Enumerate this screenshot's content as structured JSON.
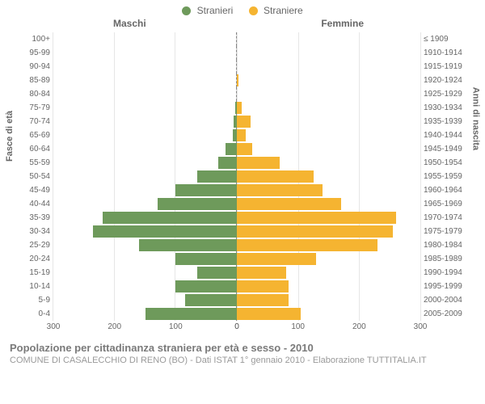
{
  "legend": {
    "male": {
      "label": "Stranieri",
      "color": "#6e9a5b"
    },
    "female": {
      "label": "Straniere",
      "color": "#f5b431"
    }
  },
  "section_labels": {
    "left": "Maschi",
    "right": "Femmine"
  },
  "axis_titles": {
    "left": "Fasce di età",
    "right": "Anni di nascita"
  },
  "x_axis": {
    "max": 300,
    "ticks": [
      0,
      100,
      200,
      300
    ]
  },
  "grid_color": "#e6e6e6",
  "bar_colors": {
    "male": "#6e9a5b",
    "female": "#f5b431"
  },
  "age_groups": [
    {
      "age": "100+",
      "birth": "≤ 1909",
      "m": 0,
      "f": 0
    },
    {
      "age": "95-99",
      "birth": "1910-1914",
      "m": 0,
      "f": 0
    },
    {
      "age": "90-94",
      "birth": "1915-1919",
      "m": 0,
      "f": 0
    },
    {
      "age": "85-89",
      "birth": "1920-1924",
      "m": 0,
      "f": 3
    },
    {
      "age": "80-84",
      "birth": "1925-1929",
      "m": 0,
      "f": 0
    },
    {
      "age": "75-79",
      "birth": "1930-1934",
      "m": 3,
      "f": 8
    },
    {
      "age": "70-74",
      "birth": "1935-1939",
      "m": 5,
      "f": 22
    },
    {
      "age": "65-69",
      "birth": "1940-1944",
      "m": 7,
      "f": 15
    },
    {
      "age": "60-64",
      "birth": "1945-1949",
      "m": 18,
      "f": 25
    },
    {
      "age": "55-59",
      "birth": "1950-1954",
      "m": 30,
      "f": 70
    },
    {
      "age": "50-54",
      "birth": "1955-1959",
      "m": 65,
      "f": 125
    },
    {
      "age": "45-49",
      "birth": "1960-1964",
      "m": 100,
      "f": 140
    },
    {
      "age": "40-44",
      "birth": "1965-1969",
      "m": 130,
      "f": 170
    },
    {
      "age": "35-39",
      "birth": "1970-1974",
      "m": 220,
      "f": 260
    },
    {
      "age": "30-34",
      "birth": "1975-1979",
      "m": 235,
      "f": 255
    },
    {
      "age": "25-29",
      "birth": "1980-1984",
      "m": 160,
      "f": 230
    },
    {
      "age": "20-24",
      "birth": "1985-1989",
      "m": 100,
      "f": 130
    },
    {
      "age": "15-19",
      "birth": "1990-1994",
      "m": 65,
      "f": 80
    },
    {
      "age": "10-14",
      "birth": "1995-1999",
      "m": 100,
      "f": 85
    },
    {
      "age": "5-9",
      "birth": "2000-2004",
      "m": 85,
      "f": 85
    },
    {
      "age": "0-4",
      "birth": "2005-2009",
      "m": 150,
      "f": 105
    }
  ],
  "caption": {
    "title": "Popolazione per cittadinanza straniera per età e sesso - 2010",
    "sub": "COMUNE DI CASALECCHIO DI RENO (BO) - Dati ISTAT 1° gennaio 2010 - Elaborazione TUTTITALIA.IT"
  }
}
